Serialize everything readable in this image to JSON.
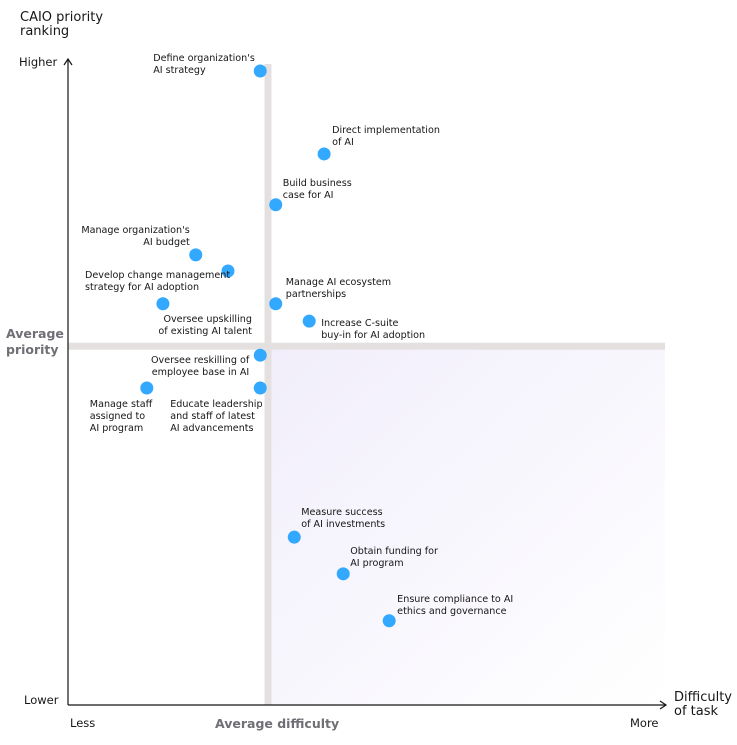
{
  "chart_data": {
    "type": "scatter",
    "title": "",
    "ylabel": "CAIO priority ranking",
    "xlabel": "Difficulty of task",
    "y_axis_ends": {
      "low": "Lower",
      "high": "Higher"
    },
    "x_axis_ends": {
      "low": "Less",
      "high": "More"
    },
    "average_x_label": "Average difficulty",
    "average_y_label": "Average priority",
    "average_x": 33.5,
    "average_y": 55.8,
    "xlim": [
      0,
      100
    ],
    "ylim": [
      0,
      100
    ],
    "grid": false,
    "colors": {
      "point": "#33a8ff",
      "average_band": "#e5e0e0",
      "quadrant_fill": "#f3f0fc"
    },
    "points": [
      {
        "label": "Define organization's\nAI strategy",
        "x": 32.2,
        "y": 98.6
      },
      {
        "label": "Direct implementation\nof AI",
        "x": 42.9,
        "y": 85.7
      },
      {
        "label": "Build business\ncase for AI",
        "x": 34.8,
        "y": 77.8
      },
      {
        "label": "Manage organization's\nAI budget",
        "x": 21.4,
        "y": 70.0
      },
      {
        "label": "Develop change management\nstrategy for AI adoption",
        "x": 26.8,
        "y": 67.5
      },
      {
        "label": "Manage AI ecosystem\npartnerships",
        "x": 34.8,
        "y": 62.4
      },
      {
        "label": "Oversee upskilling\nof existing AI talent",
        "x": 15.9,
        "y": 62.4
      },
      {
        "label": "Increase C-suite\nbuy-in for AI adoption",
        "x": 40.4,
        "y": 59.7
      },
      {
        "label": "Oversee reskilling of\nemployee base in AI",
        "x": 32.2,
        "y": 54.4
      },
      {
        "label": "Manage staff\nassigned to\nAI program",
        "x": 13.2,
        "y": 49.3
      },
      {
        "label": "Educate leadership\nand staff of latest\nAI advancements",
        "x": 32.2,
        "y": 49.3
      },
      {
        "label": "Measure success\nof AI investments",
        "x": 37.9,
        "y": 26.1
      },
      {
        "label": "Obtain funding for\nAI program",
        "x": 46.1,
        "y": 20.4
      },
      {
        "label": "Ensure compliance to AI\nethics and governance",
        "x": 53.8,
        "y": 13.1
      }
    ]
  }
}
